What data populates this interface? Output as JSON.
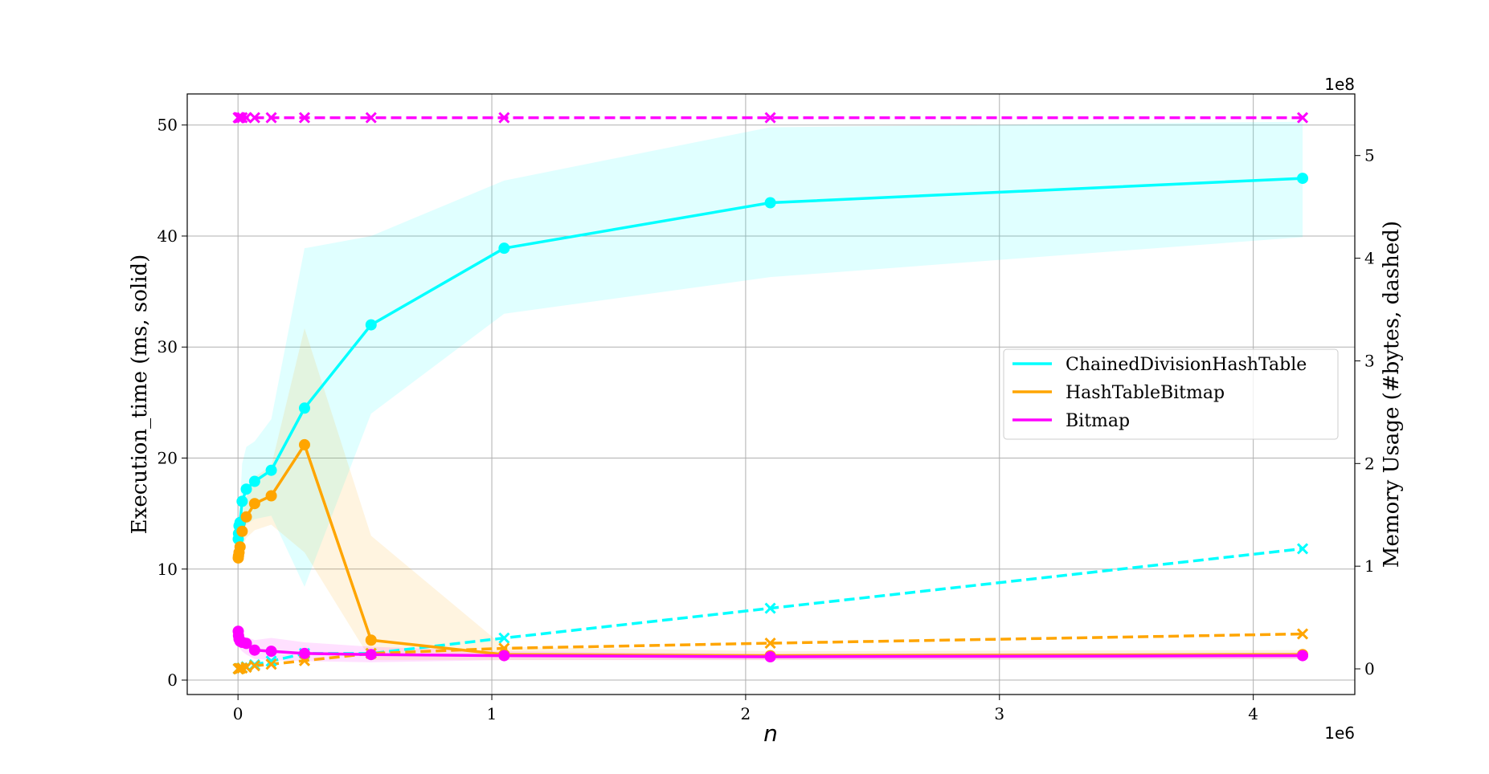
{
  "chart_data": {
    "type": "line",
    "title": "",
    "xlabel": "n",
    "ylabel_left": "Execution_time (ms, solid)",
    "ylabel_right": "Memory Usage (#bytes, dashed)",
    "x_offset_label": "1e6",
    "y_right_offset_label": "1e8",
    "xlim": [
      -200000,
      4400000
    ],
    "ylim_left": [
      -1.3,
      52.8
    ],
    "ylim_right": [
      -25000000,
      560000000
    ],
    "x_ticks": [
      0,
      1000000,
      2000000,
      3000000,
      4000000
    ],
    "x_tick_labels": [
      "0",
      "1",
      "2",
      "3",
      "4"
    ],
    "y_left_ticks": [
      0,
      10,
      20,
      30,
      40,
      50
    ],
    "y_left_tick_labels": [
      "0",
      "10",
      "20",
      "30",
      "40",
      "50"
    ],
    "y_right_ticks": [
      0,
      100000000,
      200000000,
      300000000,
      400000000,
      500000000
    ],
    "y_right_tick_labels": [
      "0",
      "1",
      "2",
      "3",
      "4",
      "5"
    ],
    "grid": true,
    "legend_position": "center-right",
    "x": [
      1024,
      2048,
      4096,
      8192,
      16384,
      32768,
      65536,
      131072,
      262144,
      524288,
      1048576,
      2097152,
      4194304
    ],
    "series": [
      {
        "name": "ChainedDivisionHashTable",
        "color": "#00ffff",
        "time_ms": [
          12.7,
          13.2,
          13.9,
          14.2,
          16.1,
          17.2,
          17.9,
          18.9,
          24.5,
          32.0,
          38.9,
          43.0,
          45.2
        ],
        "time_lower": [
          11.5,
          12.0,
          12.5,
          12.8,
          13.5,
          14.0,
          14.5,
          14.8,
          8.4,
          24.0,
          33.0,
          36.3,
          39.9
        ],
        "time_upper": [
          14.0,
          14.5,
          15.2,
          15.8,
          19.5,
          21.0,
          21.5,
          23.5,
          38.9,
          40.0,
          45.0,
          49.8,
          50.3
        ],
        "memory_bytes": [
          100000,
          150000,
          250000,
          500000,
          1000000,
          2000000,
          4000000,
          7500000,
          15000000,
          15000000,
          30000000,
          59000000,
          117000000
        ]
      },
      {
        "name": "HashTableBitmap",
        "color": "#ffa500",
        "time_ms": [
          11.0,
          11.2,
          11.5,
          12.0,
          13.4,
          14.7,
          15.9,
          16.6,
          21.2,
          3.6,
          2.3,
          2.2,
          2.3
        ],
        "time_lower": [
          10.0,
          10.3,
          10.6,
          11.0,
          12.0,
          12.8,
          13.5,
          14.0,
          11.5,
          1.8,
          1.8,
          1.8,
          1.9
        ],
        "time_upper": [
          12.0,
          12.2,
          12.5,
          13.0,
          14.8,
          16.5,
          18.3,
          19.3,
          31.7,
          13.0,
          3.0,
          2.6,
          2.7
        ],
        "memory_bytes": [
          80000,
          120000,
          200000,
          400000,
          800000,
          1500000,
          3000000,
          4500000,
          8000000,
          15000000,
          20000000,
          25000000,
          34000000
        ]
      },
      {
        "name": "Bitmap",
        "color": "#ff00ff",
        "time_ms": [
          4.4,
          4.0,
          3.7,
          3.5,
          3.4,
          3.3,
          2.7,
          2.6,
          2.4,
          2.3,
          2.2,
          2.1,
          2.2
        ],
        "time_lower": [
          3.5,
          3.2,
          3.0,
          2.8,
          2.6,
          2.3,
          1.9,
          1.8,
          1.7,
          1.6,
          1.8,
          1.8,
          1.9
        ],
        "time_upper": [
          5.2,
          4.8,
          4.5,
          4.2,
          4.0,
          3.9,
          3.6,
          3.8,
          3.4,
          3.0,
          2.6,
          2.4,
          2.5
        ],
        "memory_bytes": [
          536870912,
          536870912,
          536870912,
          536870912,
          536870912,
          536870912,
          536870912,
          536870912,
          536870912,
          536870912,
          536870912,
          536870912,
          536870912
        ]
      }
    ]
  }
}
